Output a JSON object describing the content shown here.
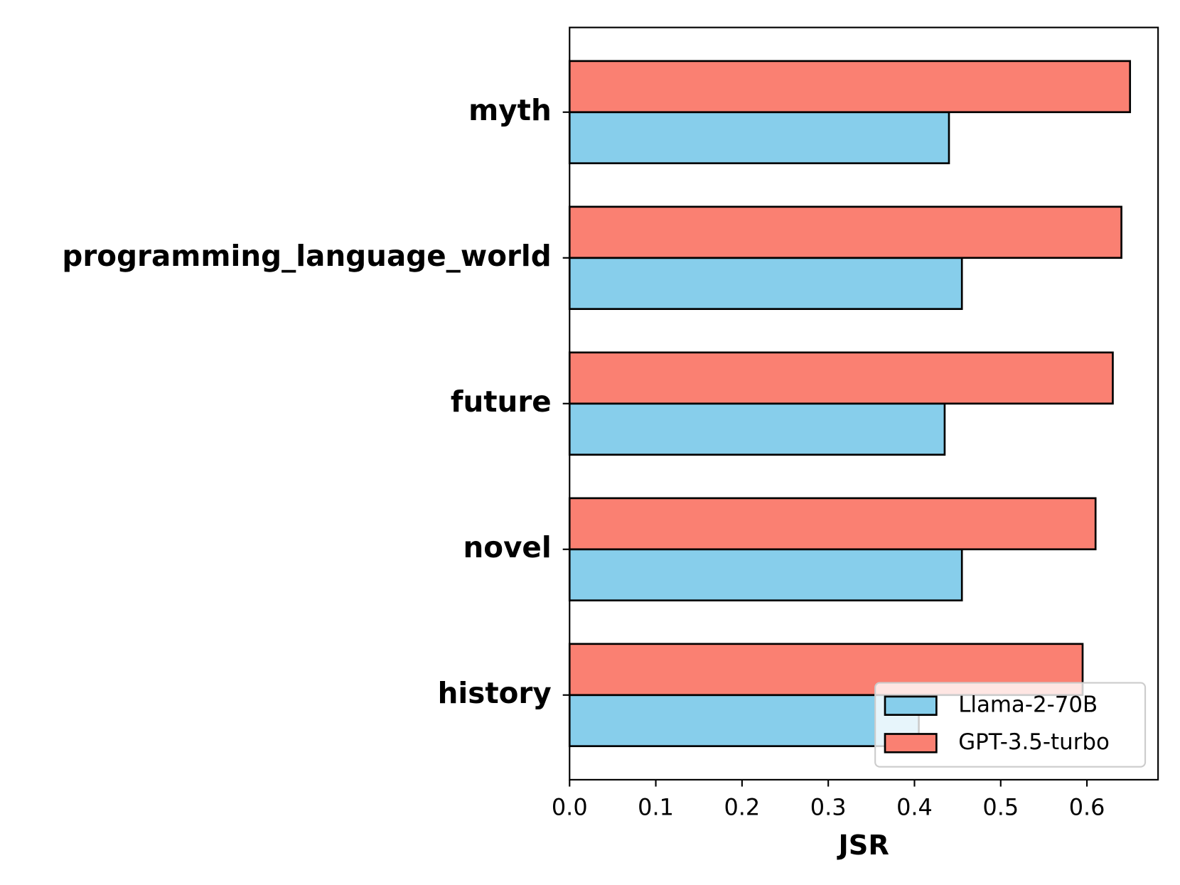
{
  "chart_data": {
    "type": "barh",
    "x_label": "JSR",
    "categories": [
      "history",
      "novel",
      "future",
      "programming_language_world",
      "myth"
    ],
    "series": [
      {
        "name": "Llama-2-70B",
        "color": "#87ceeb",
        "values": [
          0.405,
          0.455,
          0.435,
          0.455,
          0.44
        ]
      },
      {
        "name": "GPT-3.5-turbo",
        "color": "#fa8072",
        "values": [
          0.595,
          0.61,
          0.63,
          0.64,
          0.65
        ]
      }
    ],
    "xlim": [
      0,
      0.6825
    ],
    "xticks": [
      {
        "value": 0,
        "label": "0.0"
      },
      0.1,
      0.2,
      0.3,
      0.4,
      0.5,
      0.6
    ],
    "legend": "lower right"
  }
}
